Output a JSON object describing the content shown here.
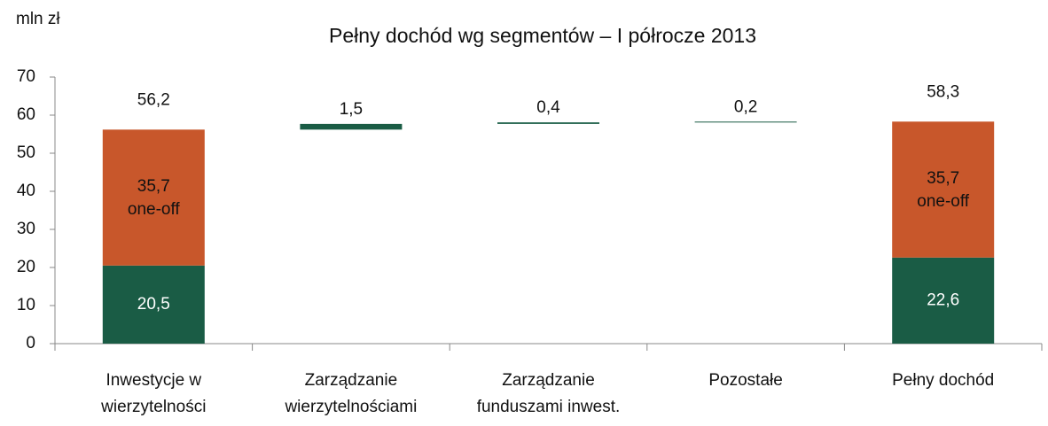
{
  "chart_data": {
    "type": "waterfall",
    "title": "Pełny dochód wg segmentów – I półrocze 2013",
    "y_label": "mln zł",
    "categories": [
      [
        "Inwestycje w",
        "wierzytelności"
      ],
      [
        "Zarządzanie",
        "wierzytelnościami"
      ],
      [
        "Zarządzanie",
        "funduszami inwest."
      ],
      [
        "Pozostałe"
      ],
      [
        "Pełny dochód"
      ]
    ],
    "series": [
      {
        "color": "#1a5c45",
        "values": [
          20.5,
          1.5,
          0.4,
          0.2,
          22.6
        ],
        "value_labels": [
          "20,5",
          "1,5",
          "0,4",
          "0,2",
          "22,6"
        ]
      },
      {
        "color": "#c8572b",
        "values": [
          35.7,
          null,
          null,
          null,
          35.7
        ],
        "value_labels": [
          "35,7",
          null,
          null,
          null,
          "35,7"
        ]
      }
    ],
    "annotation": "one-off",
    "totals": [
      56.2,
      null,
      null,
      null,
      58.3
    ],
    "total_labels": [
      "56,2",
      null,
      null,
      null,
      "58,3"
    ],
    "ylim": [
      0,
      70
    ],
    "yticks": [
      0,
      10,
      20,
      30,
      40,
      50,
      60,
      70
    ]
  }
}
